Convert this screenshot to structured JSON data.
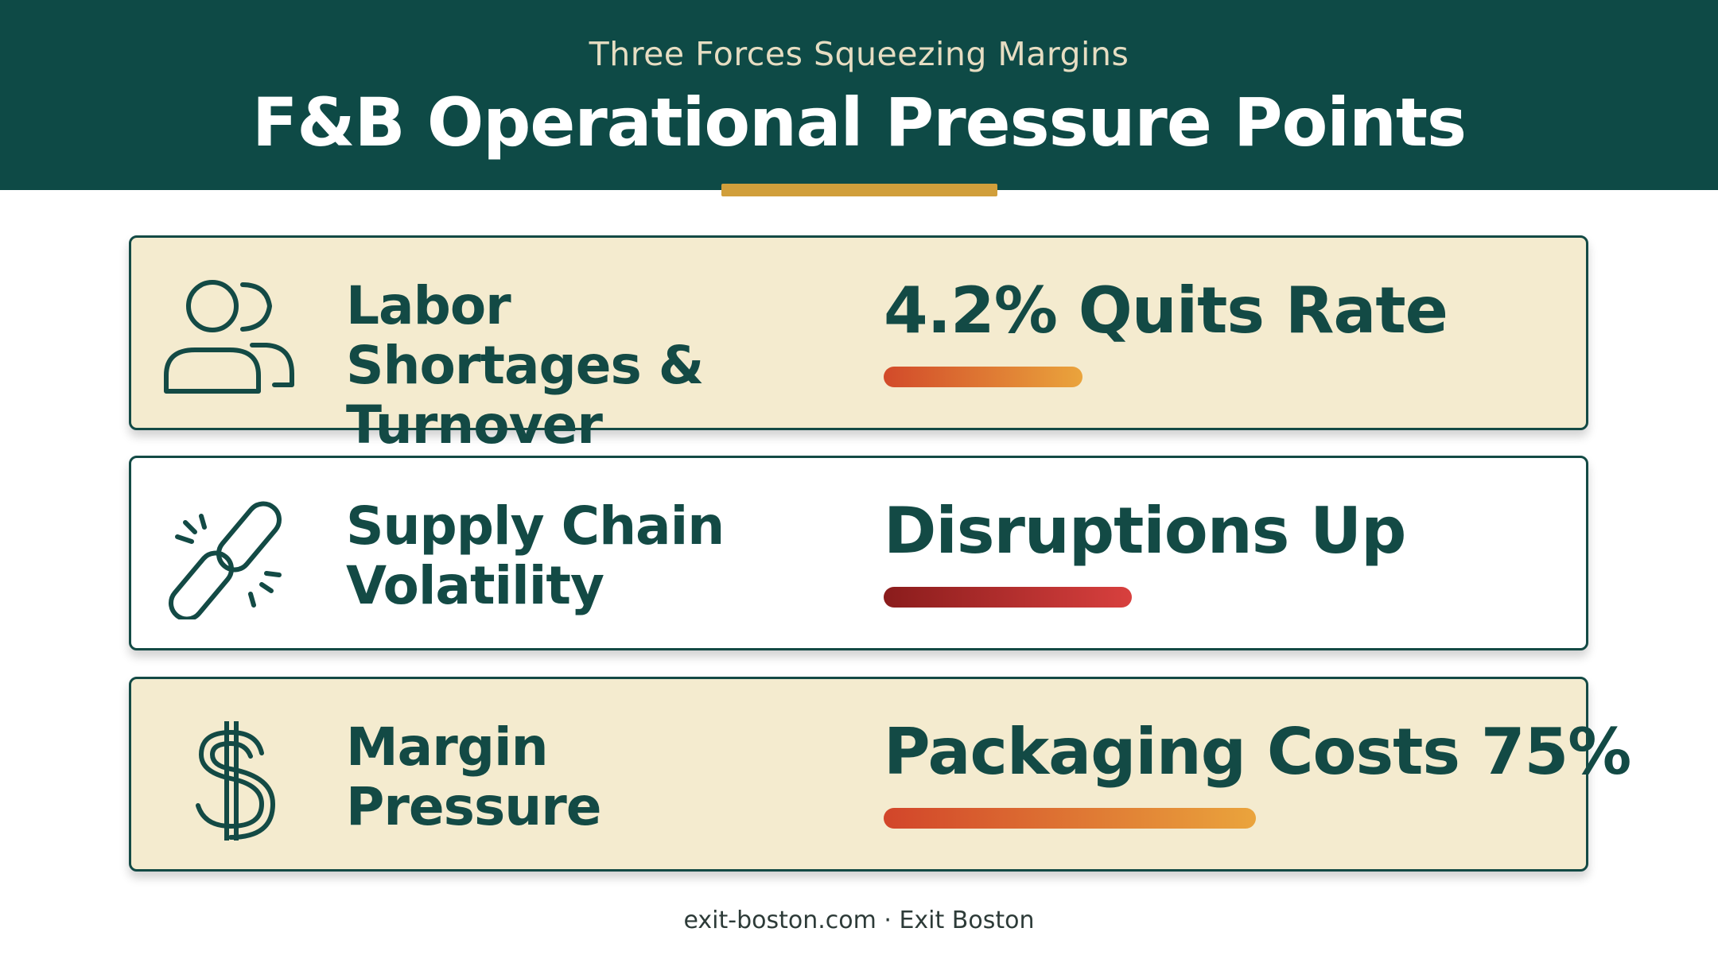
{
  "header": {
    "subtitle": "Three Forces Squeezing Margins",
    "title": "F&B Operational Pressure Points"
  },
  "cards": [
    {
      "icon": "people-icon",
      "label": "Labor Shortages & Turnover",
      "metric": "4.2% Quits Rate",
      "bar_fill": 0.32,
      "bar_colors": [
        "#d24a2a",
        "#eaa43c"
      ],
      "background": "tan"
    },
    {
      "icon": "broken-chain-icon",
      "label": "Supply Chain Volatility",
      "metric": "Disruptions Up",
      "bar_fill": 0.4,
      "bar_colors": [
        "#8a1c1c",
        "#d8403e"
      ],
      "background": "white"
    },
    {
      "icon": "dollar-icon",
      "label": "Margin Pressure",
      "metric": "Packaging Costs 75%",
      "bar_fill": 0.6,
      "bar_colors": [
        "#d2452a",
        "#eaa43c"
      ],
      "background": "tan"
    }
  ],
  "footer": {
    "text": "exit-boston.com · Exit Boston"
  },
  "colors": {
    "header_bg": "#0e4a46",
    "accent": "#d19f3b",
    "text_dark": "#134a45"
  }
}
